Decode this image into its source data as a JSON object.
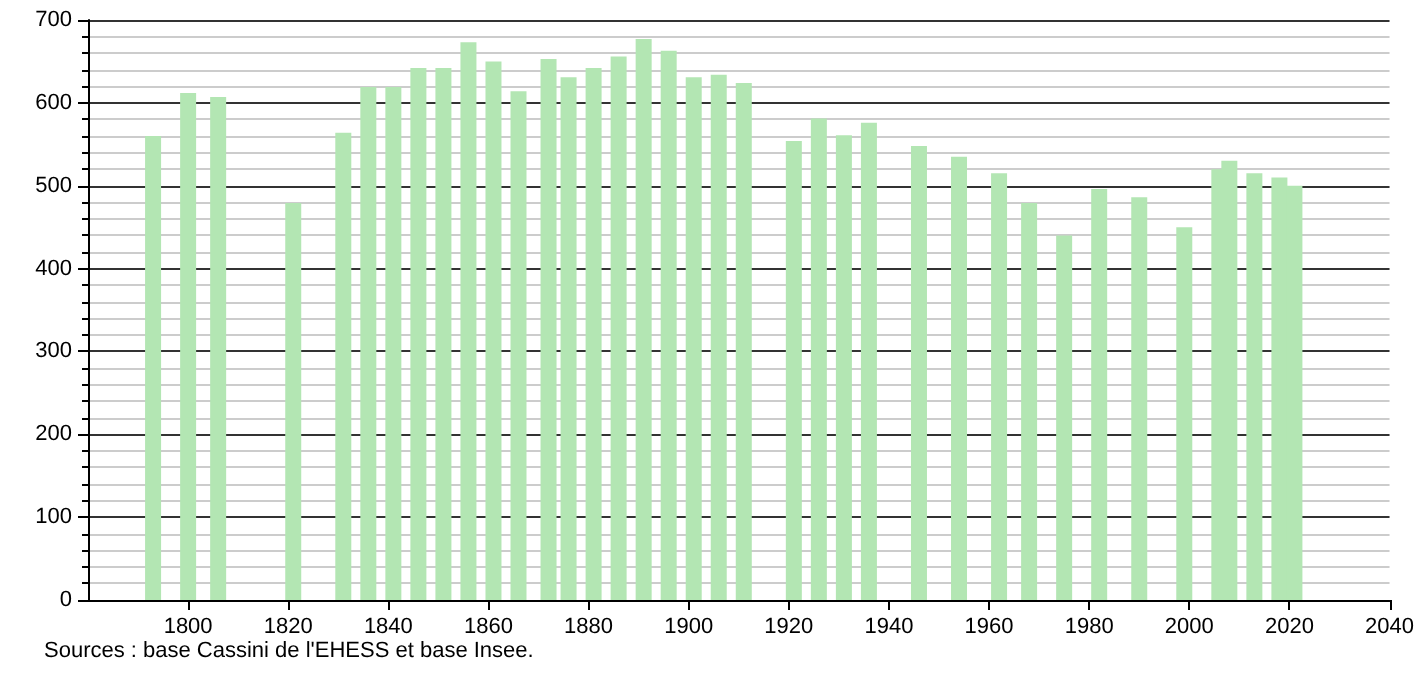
{
  "chart_data": {
    "type": "bar",
    "x": [
      1793,
      1800,
      1806,
      1821,
      1831,
      1836,
      1841,
      1846,
      1851,
      1856,
      1861,
      1866,
      1872,
      1876,
      1881,
      1886,
      1891,
      1896,
      1901,
      1906,
      1911,
      1921,
      1926,
      1931,
      1936,
      1946,
      1954,
      1962,
      1968,
      1975,
      1982,
      1990,
      1999,
      2006,
      2008,
      2013,
      2018,
      2021
    ],
    "values": [
      560,
      612,
      607,
      479,
      564,
      619,
      619,
      642,
      642,
      673,
      650,
      614,
      653,
      631,
      642,
      656,
      677,
      663,
      631,
      634,
      624,
      554,
      581,
      561,
      576,
      548,
      535,
      515,
      479,
      440,
      496,
      486,
      450,
      520,
      530,
      515,
      510,
      500
    ],
    "color": "#b3e6b3",
    "xlim": [
      1780,
      2040
    ],
    "xticks": [
      1800,
      1820,
      1840,
      1860,
      1880,
      1900,
      1920,
      1940,
      1960,
      1980,
      2000,
      2020,
      2040
    ],
    "ylim": [
      0,
      700
    ],
    "yticks": [
      0,
      100,
      200,
      300,
      400,
      500,
      600,
      700
    ],
    "grid": "y",
    "annotations": [
      "Sources : base Cassini de l'EHESS et base Insee."
    ]
  }
}
